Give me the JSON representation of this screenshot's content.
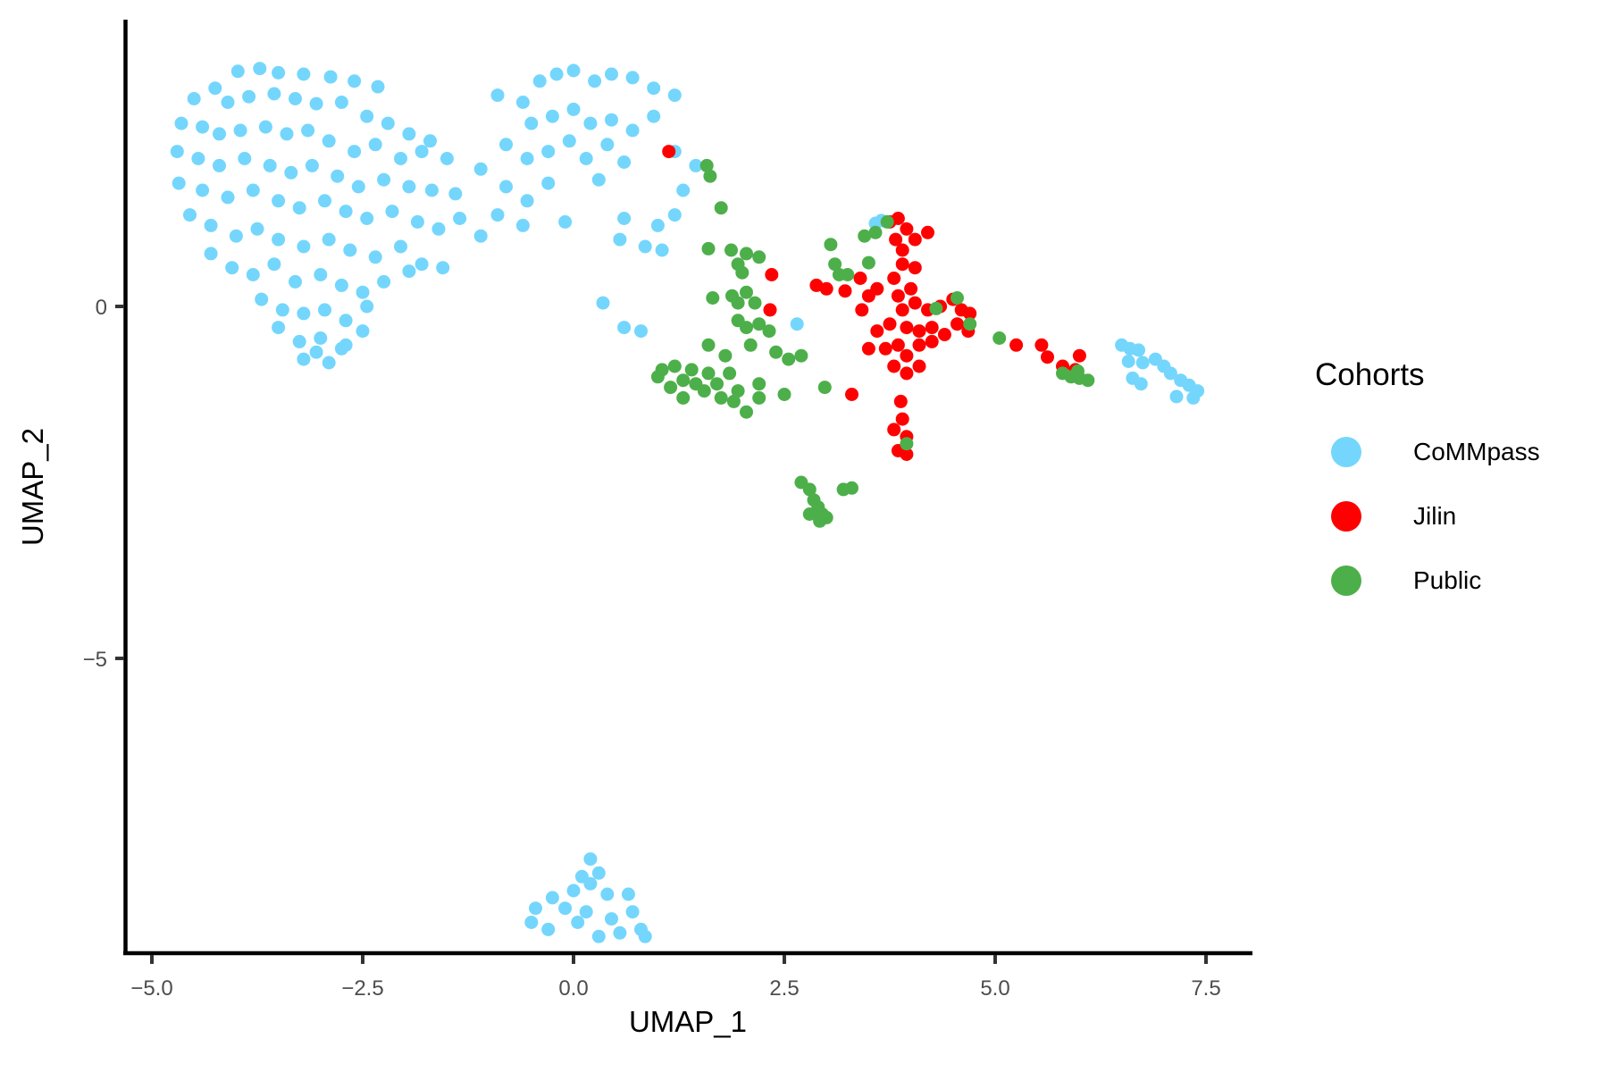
{
  "chart_data": {
    "type": "scatter",
    "title": "",
    "xlabel": "UMAP_1",
    "ylabel": "UMAP_2",
    "xlim": [
      -5.33,
      8.05
    ],
    "ylim": [
      -9.19,
      4.07
    ],
    "x_ticks": [
      -5.0,
      -2.5,
      0.0,
      2.5,
      5.0,
      7.5
    ],
    "x_tick_labels": [
      "−5.0",
      "−2.5",
      "0.0",
      "2.5",
      "5.0",
      "7.5"
    ],
    "y_ticks": [
      0,
      -5
    ],
    "y_tick_labels": [
      "0",
      "−5"
    ],
    "grid": false,
    "legend": {
      "title": "Cohorts",
      "position": "right",
      "entries": [
        "CoMMpass",
        "Jilin",
        "Public"
      ]
    },
    "series": [
      {
        "name": "CoMMpass",
        "color": "#74D6FC",
        "points": [
          [
            -3.98,
            3.34
          ],
          [
            -3.72,
            3.38
          ],
          [
            -3.5,
            3.32
          ],
          [
            -3.2,
            3.3
          ],
          [
            -2.88,
            3.26
          ],
          [
            -2.6,
            3.2
          ],
          [
            -2.32,
            3.12
          ],
          [
            -4.25,
            3.1
          ],
          [
            -4.5,
            2.95
          ],
          [
            -4.1,
            2.9
          ],
          [
            -3.85,
            2.98
          ],
          [
            -3.55,
            3.02
          ],
          [
            -3.3,
            2.95
          ],
          [
            -3.05,
            2.88
          ],
          [
            -2.75,
            2.9
          ],
          [
            -2.45,
            2.7
          ],
          [
            -2.2,
            2.6
          ],
          [
            -1.95,
            2.45
          ],
          [
            -1.7,
            2.35
          ],
          [
            -4.65,
            2.6
          ],
          [
            -4.4,
            2.55
          ],
          [
            -4.2,
            2.45
          ],
          [
            -3.95,
            2.5
          ],
          [
            -3.65,
            2.55
          ],
          [
            -3.4,
            2.45
          ],
          [
            -3.15,
            2.5
          ],
          [
            -2.9,
            2.35
          ],
          [
            -2.6,
            2.2
          ],
          [
            -2.35,
            2.3
          ],
          [
            -2.05,
            2.1
          ],
          [
            -1.8,
            2.2
          ],
          [
            -1.5,
            2.1
          ],
          [
            -4.7,
            2.2
          ],
          [
            -4.45,
            2.1
          ],
          [
            -4.2,
            2.0
          ],
          [
            -3.9,
            2.1
          ],
          [
            -3.6,
            2.0
          ],
          [
            -3.35,
            1.9
          ],
          [
            -3.1,
            2.0
          ],
          [
            -2.8,
            1.85
          ],
          [
            -2.55,
            1.7
          ],
          [
            -2.25,
            1.8
          ],
          [
            -1.95,
            1.7
          ],
          [
            -1.68,
            1.65
          ],
          [
            -1.4,
            1.6
          ],
          [
            -4.68,
            1.75
          ],
          [
            -4.4,
            1.65
          ],
          [
            -4.1,
            1.55
          ],
          [
            -3.8,
            1.65
          ],
          [
            -3.5,
            1.5
          ],
          [
            -3.25,
            1.4
          ],
          [
            -2.95,
            1.5
          ],
          [
            -2.7,
            1.35
          ],
          [
            -2.45,
            1.25
          ],
          [
            -2.15,
            1.35
          ],
          [
            -1.85,
            1.2
          ],
          [
            -1.6,
            1.1
          ],
          [
            -1.35,
            1.25
          ],
          [
            -1.1,
            1.0
          ],
          [
            -4.55,
            1.3
          ],
          [
            -4.3,
            1.15
          ],
          [
            -4.0,
            1.0
          ],
          [
            -3.75,
            1.1
          ],
          [
            -3.5,
            0.95
          ],
          [
            -3.2,
            0.85
          ],
          [
            -2.9,
            0.95
          ],
          [
            -2.65,
            0.8
          ],
          [
            -2.35,
            0.7
          ],
          [
            -2.05,
            0.85
          ],
          [
            -1.8,
            0.6
          ],
          [
            -1.55,
            0.55
          ],
          [
            -4.3,
            0.75
          ],
          [
            -4.05,
            0.55
          ],
          [
            -3.8,
            0.45
          ],
          [
            -3.55,
            0.6
          ],
          [
            -3.3,
            0.35
          ],
          [
            -3.0,
            0.45
          ],
          [
            -2.75,
            0.3
          ],
          [
            -2.5,
            0.2
          ],
          [
            -2.25,
            0.35
          ],
          [
            -1.95,
            0.5
          ],
          [
            -3.7,
            0.1
          ],
          [
            -3.45,
            -0.05
          ],
          [
            -3.2,
            -0.1
          ],
          [
            -2.95,
            -0.05
          ],
          [
            -2.7,
            -0.2
          ],
          [
            -2.45,
            0.0
          ],
          [
            -3.5,
            -0.3
          ],
          [
            -3.25,
            -0.5
          ],
          [
            -3.0,
            -0.45
          ],
          [
            -2.75,
            -0.6
          ],
          [
            -2.5,
            -0.35
          ],
          [
            -2.9,
            -0.8
          ],
          [
            -3.05,
            -0.65
          ],
          [
            -2.7,
            -0.55
          ],
          [
            -3.2,
            -0.75
          ],
          [
            -0.9,
            3.0
          ],
          [
            -0.6,
            2.9
          ],
          [
            -0.4,
            3.2
          ],
          [
            -0.2,
            3.3
          ],
          [
            0.0,
            3.35
          ],
          [
            0.25,
            3.2
          ],
          [
            0.45,
            3.3
          ],
          [
            0.7,
            3.25
          ],
          [
            0.95,
            3.1
          ],
          [
            1.2,
            3.0
          ],
          [
            -0.5,
            2.6
          ],
          [
            -0.25,
            2.7
          ],
          [
            0.0,
            2.8
          ],
          [
            0.2,
            2.6
          ],
          [
            0.45,
            2.65
          ],
          [
            0.7,
            2.5
          ],
          [
            0.95,
            2.7
          ],
          [
            -0.8,
            2.3
          ],
          [
            -0.55,
            2.1
          ],
          [
            -0.3,
            2.2
          ],
          [
            -0.05,
            2.35
          ],
          [
            0.15,
            2.1
          ],
          [
            0.4,
            2.3
          ],
          [
            0.6,
            2.05
          ],
          [
            -1.1,
            1.95
          ],
          [
            -0.8,
            1.7
          ],
          [
            -0.55,
            1.5
          ],
          [
            -0.3,
            1.75
          ],
          [
            0.3,
            1.8
          ],
          [
            -0.9,
            1.3
          ],
          [
            -0.6,
            1.15
          ],
          [
            -0.1,
            1.2
          ],
          [
            1.2,
            2.2
          ],
          [
            1.3,
            1.65
          ],
          [
            1.45,
            2.0
          ],
          [
            0.6,
            1.25
          ],
          [
            1.0,
            1.15
          ],
          [
            0.55,
            0.95
          ],
          [
            0.85,
            0.85
          ],
          [
            1.05,
            0.8
          ],
          [
            1.2,
            1.3
          ],
          [
            0.35,
            0.05
          ],
          [
            0.6,
            -0.3
          ],
          [
            0.8,
            -0.35
          ],
          [
            2.65,
            -0.25
          ],
          [
            3.65,
            1.22
          ],
          [
            3.58,
            1.18
          ],
          [
            6.5,
            -0.55
          ],
          [
            6.6,
            -0.6
          ],
          [
            6.7,
            -0.62
          ],
          [
            6.58,
            -0.78
          ],
          [
            6.75,
            -0.8
          ],
          [
            6.9,
            -0.75
          ],
          [
            7.0,
            -0.85
          ],
          [
            7.08,
            -0.95
          ],
          [
            7.2,
            -1.05
          ],
          [
            7.3,
            -1.12
          ],
          [
            7.4,
            -1.2
          ],
          [
            7.35,
            -1.3
          ],
          [
            6.63,
            -1.02
          ],
          [
            6.73,
            -1.1
          ],
          [
            7.15,
            -1.28
          ],
          [
            0.2,
            -7.85
          ],
          [
            0.1,
            -8.1
          ],
          [
            0.3,
            -8.05
          ],
          [
            0.0,
            -8.3
          ],
          [
            0.4,
            -8.35
          ],
          [
            0.65,
            -8.35
          ],
          [
            -0.25,
            -8.4
          ],
          [
            -0.45,
            -8.55
          ],
          [
            -0.1,
            -8.55
          ],
          [
            0.15,
            -8.6
          ],
          [
            0.45,
            -8.7
          ],
          [
            0.7,
            -8.6
          ],
          [
            0.8,
            -8.85
          ],
          [
            -0.5,
            -8.75
          ],
          [
            -0.3,
            -8.85
          ],
          [
            0.05,
            -8.75
          ],
          [
            0.3,
            -8.95
          ],
          [
            0.55,
            -8.9
          ],
          [
            0.85,
            -8.95
          ],
          [
            0.2,
            -8.2
          ]
        ]
      },
      {
        "name": "Jilin",
        "color": "#FF0000",
        "points": [
          [
            1.13,
            2.2
          ],
          [
            2.35,
            0.45
          ],
          [
            2.33,
            -0.05
          ],
          [
            3.0,
            0.25
          ],
          [
            2.88,
            0.3
          ],
          [
            3.22,
            0.22
          ],
          [
            3.4,
            0.4
          ],
          [
            3.5,
            0.15
          ],
          [
            3.6,
            0.25
          ],
          [
            3.42,
            -0.05
          ],
          [
            3.75,
            1.2
          ],
          [
            3.85,
            1.25
          ],
          [
            3.95,
            1.1
          ],
          [
            3.82,
            0.95
          ],
          [
            4.05,
            0.95
          ],
          [
            4.2,
            1.05
          ],
          [
            3.9,
            0.8
          ],
          [
            3.9,
            0.6
          ],
          [
            3.8,
            0.4
          ],
          [
            3.85,
            0.15
          ],
          [
            3.9,
            -0.05
          ],
          [
            4.0,
            0.25
          ],
          [
            4.05,
            0.05
          ],
          [
            4.2,
            -0.05
          ],
          [
            4.35,
            0.0
          ],
          [
            4.5,
            0.1
          ],
          [
            4.6,
            -0.05
          ],
          [
            4.55,
            -0.25
          ],
          [
            4.4,
            -0.4
          ],
          [
            4.25,
            -0.3
          ],
          [
            4.1,
            -0.35
          ],
          [
            3.95,
            -0.3
          ],
          [
            3.75,
            -0.25
          ],
          [
            3.6,
            -0.35
          ],
          [
            3.5,
            -0.6
          ],
          [
            3.7,
            -0.6
          ],
          [
            3.85,
            -0.55
          ],
          [
            3.95,
            -0.7
          ],
          [
            4.1,
            -0.55
          ],
          [
            4.25,
            -0.5
          ],
          [
            3.8,
            -0.85
          ],
          [
            3.95,
            -0.95
          ],
          [
            4.1,
            -0.85
          ],
          [
            3.3,
            -1.25
          ],
          [
            3.88,
            -1.35
          ],
          [
            3.9,
            -1.6
          ],
          [
            3.8,
            -1.75
          ],
          [
            3.95,
            -1.85
          ],
          [
            3.85,
            -2.05
          ],
          [
            3.95,
            -2.1
          ],
          [
            4.7,
            -0.1
          ],
          [
            4.68,
            -0.35
          ],
          [
            5.25,
            -0.55
          ],
          [
            5.55,
            -0.55
          ],
          [
            5.62,
            -0.72
          ],
          [
            5.8,
            -0.85
          ],
          [
            5.95,
            -0.9
          ],
          [
            6.0,
            -0.7
          ],
          [
            4.05,
            0.55
          ]
        ]
      },
      {
        "name": "Public",
        "color": "#4DAF4A",
        "points": [
          [
            1.58,
            2.0
          ],
          [
            1.62,
            1.85
          ],
          [
            1.75,
            1.4
          ],
          [
            1.6,
            0.82
          ],
          [
            1.87,
            0.8
          ],
          [
            2.05,
            0.75
          ],
          [
            1.95,
            0.6
          ],
          [
            2.2,
            0.7
          ],
          [
            2.0,
            0.48
          ],
          [
            1.65,
            0.12
          ],
          [
            1.88,
            0.15
          ],
          [
            1.95,
            0.05
          ],
          [
            2.05,
            0.2
          ],
          [
            2.15,
            0.05
          ],
          [
            1.95,
            -0.2
          ],
          [
            2.05,
            -0.3
          ],
          [
            2.2,
            -0.25
          ],
          [
            2.32,
            -0.35
          ],
          [
            2.1,
            -0.55
          ],
          [
            2.4,
            -0.65
          ],
          [
            2.55,
            -0.75
          ],
          [
            2.7,
            -0.7
          ],
          [
            1.6,
            -0.55
          ],
          [
            1.8,
            -0.7
          ],
          [
            1.85,
            -0.95
          ],
          [
            1.6,
            -0.95
          ],
          [
            1.4,
            -0.9
          ],
          [
            1.2,
            -0.85
          ],
          [
            1.05,
            -0.9
          ],
          [
            1.3,
            -1.05
          ],
          [
            1.45,
            -1.1
          ],
          [
            1.55,
            -1.2
          ],
          [
            1.7,
            -1.1
          ],
          [
            1.75,
            -1.3
          ],
          [
            1.3,
            -1.3
          ],
          [
            1.0,
            -1.0
          ],
          [
            1.15,
            -1.15
          ],
          [
            1.95,
            -1.2
          ],
          [
            2.2,
            -1.1
          ],
          [
            2.2,
            -1.3
          ],
          [
            1.9,
            -1.35
          ],
          [
            2.05,
            -1.5
          ],
          [
            2.5,
            -1.25
          ],
          [
            2.98,
            -1.15
          ],
          [
            3.05,
            0.88
          ],
          [
            3.1,
            0.6
          ],
          [
            3.25,
            0.45
          ],
          [
            3.45,
            1.0
          ],
          [
            3.58,
            1.05
          ],
          [
            3.72,
            1.2
          ],
          [
            3.15,
            0.45
          ],
          [
            3.5,
            0.62
          ],
          [
            4.3,
            -0.03
          ],
          [
            4.7,
            -0.25
          ],
          [
            4.55,
            0.12
          ],
          [
            5.05,
            -0.45
          ],
          [
            3.95,
            -1.95
          ],
          [
            5.8,
            -0.95
          ],
          [
            5.9,
            -1.0
          ],
          [
            6.0,
            -1.02
          ],
          [
            6.1,
            -1.05
          ],
          [
            5.98,
            -0.92
          ],
          [
            2.7,
            -2.5
          ],
          [
            2.8,
            -2.6
          ],
          [
            2.85,
            -2.75
          ],
          [
            2.9,
            -2.85
          ],
          [
            2.95,
            -2.95
          ],
          [
            3.0,
            -3.0
          ],
          [
            2.8,
            -2.95
          ],
          [
            3.2,
            -2.6
          ],
          [
            3.3,
            -2.58
          ],
          [
            2.92,
            -3.05
          ]
        ]
      }
    ]
  }
}
